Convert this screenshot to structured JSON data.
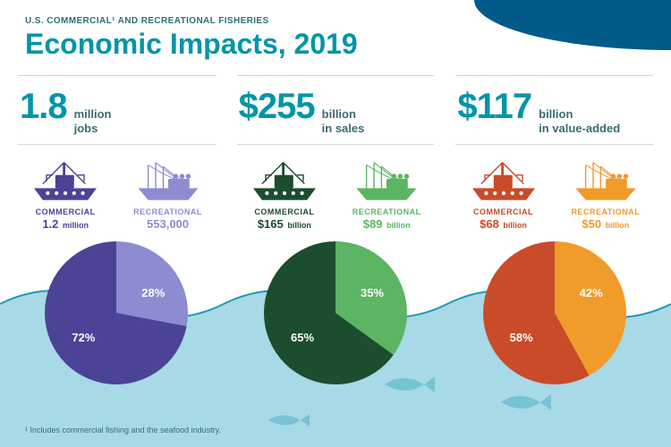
{
  "header": {
    "eyebrow": "U.S. COMMERCIAL¹ AND RECREATIONAL FISHERIES",
    "title": "Economic Impacts, 2019"
  },
  "footnote": "¹   Includes commercial fishing and the seafood industry.",
  "accent_curve_color": "#005b8a",
  "water_color": "#a8d9e6",
  "water_stroke": "#1a9cb8",
  "panels": [
    {
      "big_value": "1.8",
      "big_unit": "million\njobs",
      "big_color": "#0096a6",
      "commercial_label": "COMMERCIAL",
      "commercial_value": "1.2",
      "commercial_unit": "million",
      "recreational_label": "RECREATIONAL",
      "recreational_value": "553,000",
      "recreational_unit": "",
      "commercial_color": "#4a4396",
      "recreational_color": "#8d8cd1",
      "pie": {
        "commercial_pct": 72,
        "recreational_pct": 28,
        "c_color": "#4a4396",
        "r_color": "#8d8cd1"
      }
    },
    {
      "big_value": "$255",
      "big_unit": "billion\nin sales",
      "big_color": "#0096a6",
      "commercial_label": "COMMERCIAL",
      "commercial_value": "$165",
      "commercial_unit": "billion",
      "recreational_label": "RECREATIONAL",
      "recreational_value": "$89",
      "recreational_unit": "billion",
      "commercial_color": "#1b4d2e",
      "recreational_color": "#5bb563",
      "pie": {
        "commercial_pct": 65,
        "recreational_pct": 35,
        "c_color": "#1b4d2e",
        "r_color": "#5bb563"
      }
    },
    {
      "big_value": "$117",
      "big_unit": "billion\nin value-added",
      "big_color": "#0096a6",
      "commercial_label": "COMMERCIAL",
      "commercial_value": "$68",
      "commercial_unit": "billion",
      "recreational_label": "RECREATIONAL",
      "recreational_value": "$50",
      "recreational_unit": "billion",
      "commercial_color": "#c94b2a",
      "recreational_color": "#f09b2a",
      "pie": {
        "commercial_pct": 58,
        "recreational_pct": 42,
        "c_color": "#c94b2a",
        "r_color": "#f09b2a"
      }
    }
  ]
}
